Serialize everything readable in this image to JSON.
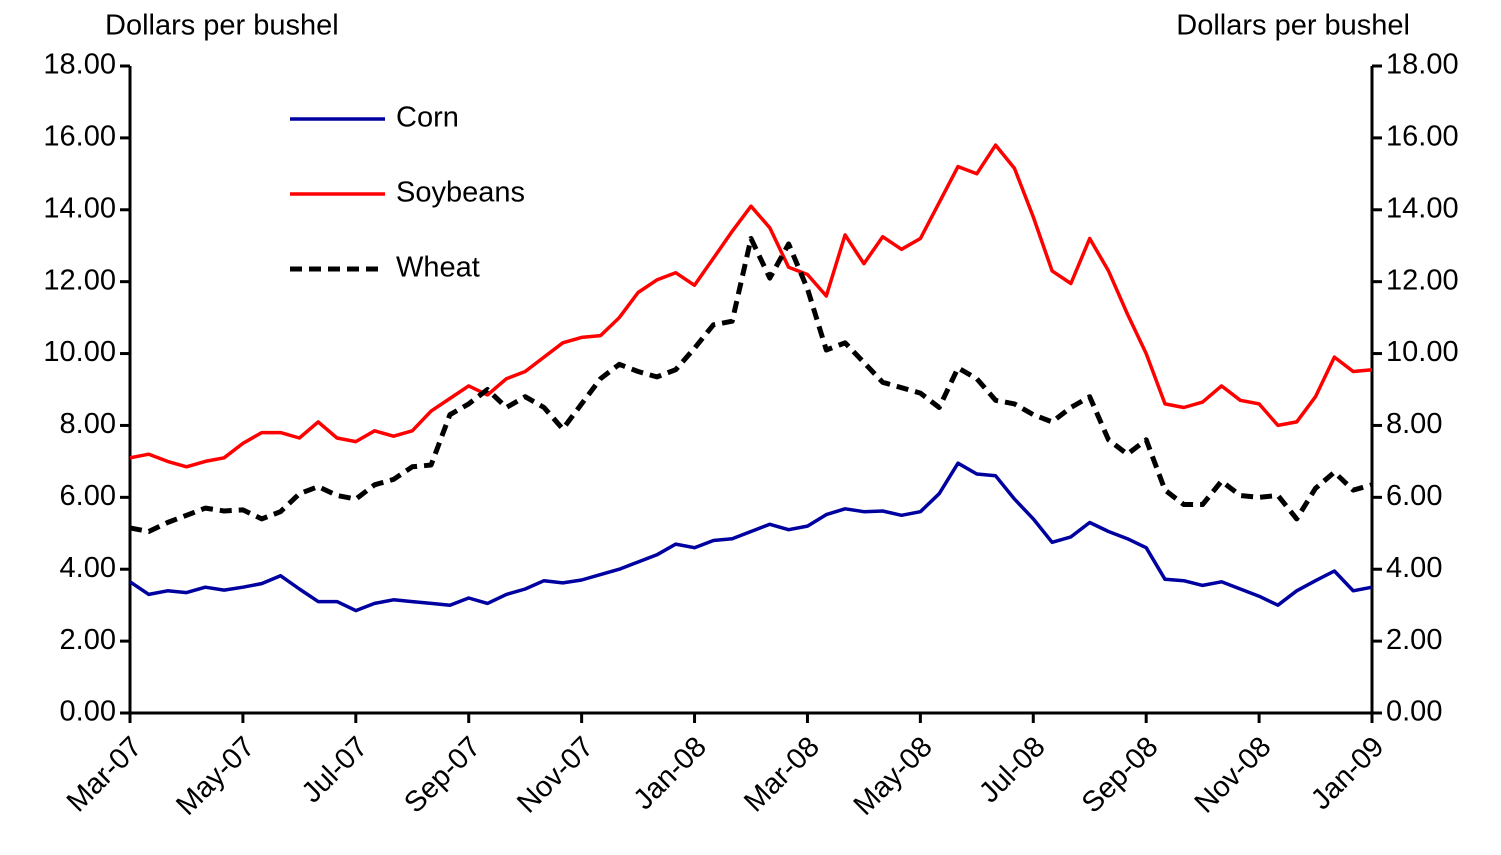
{
  "chart_data": {
    "type": "line",
    "ylabel": "Dollars per bushel",
    "y2label": "Dollars per bushel",
    "categories": [
      "Mar-07",
      null,
      null,
      null,
      null,
      null,
      "May-07",
      null,
      null,
      null,
      null,
      null,
      "Jul-07",
      null,
      null,
      null,
      null,
      null,
      "Sep-07",
      null,
      null,
      null,
      null,
      null,
      "Nov-07",
      null,
      null,
      null,
      null,
      null,
      "Jan-08",
      null,
      null,
      null,
      null,
      null,
      "Mar-08",
      null,
      null,
      null,
      null,
      null,
      "May-08",
      null,
      null,
      null,
      null,
      null,
      "Jul-08",
      null,
      null,
      null,
      null,
      null,
      "Sep-08",
      null,
      null,
      null,
      null,
      null,
      "Nov-08",
      null,
      null,
      null,
      null,
      null,
      "Jan-09"
    ],
    "series": [
      {
        "name": "Corn",
        "color": "#0000a0",
        "dash": "solid",
        "values": [
          3.65,
          3.3,
          3.4,
          3.35,
          3.5,
          3.42,
          3.5,
          3.6,
          3.82,
          3.45,
          3.1,
          3.1,
          2.85,
          3.05,
          3.15,
          3.1,
          3.05,
          3.0,
          3.2,
          3.05,
          3.3,
          3.45,
          3.68,
          3.62,
          3.7,
          3.85,
          4.0,
          4.2,
          4.4,
          4.7,
          4.6,
          4.8,
          4.85,
          5.05,
          5.25,
          5.1,
          5.2,
          5.52,
          5.68,
          5.6,
          5.62,
          5.5,
          5.6,
          6.1,
          6.95,
          6.65,
          6.6,
          5.95,
          5.4,
          4.75,
          4.9,
          5.3,
          5.05,
          4.85,
          4.6,
          3.72,
          3.68,
          3.55,
          3.65,
          3.45,
          3.25,
          3.0,
          3.4,
          3.68,
          3.95,
          3.4,
          3.5
        ]
      },
      {
        "name": "Soybeans",
        "color": "#ff0000",
        "dash": "solid",
        "values": [
          7.1,
          7.2,
          7.0,
          6.85,
          7.0,
          7.1,
          7.5,
          7.8,
          7.8,
          7.65,
          8.1,
          7.65,
          7.55,
          7.85,
          7.7,
          7.85,
          8.4,
          8.75,
          9.1,
          8.85,
          9.3,
          9.5,
          9.9,
          10.3,
          10.45,
          10.5,
          11.0,
          11.7,
          12.05,
          12.25,
          11.9,
          12.65,
          13.4,
          14.1,
          13.5,
          12.4,
          12.2,
          11.6,
          13.3,
          12.5,
          13.25,
          12.9,
          13.2,
          14.2,
          15.2,
          15.0,
          15.8,
          15.15,
          13.8,
          12.3,
          11.95,
          13.2,
          12.3,
          11.1,
          10.0,
          8.6,
          8.5,
          8.65,
          9.1,
          8.7,
          8.6,
          8.0,
          8.1,
          8.8,
          9.9,
          9.5,
          9.55
        ]
      },
      {
        "name": "Wheat",
        "color": "#000000",
        "dash": "dashed",
        "values": [
          5.15,
          5.05,
          5.3,
          5.5,
          5.7,
          5.62,
          5.65,
          5.4,
          5.6,
          6.1,
          6.3,
          6.05,
          5.95,
          6.35,
          6.5,
          6.85,
          6.9,
          8.3,
          8.6,
          9.0,
          8.5,
          8.8,
          8.5,
          7.9,
          8.6,
          9.3,
          9.7,
          9.5,
          9.35,
          9.55,
          10.15,
          10.8,
          10.9,
          13.2,
          12.1,
          13.05,
          11.8,
          10.1,
          10.3,
          9.75,
          9.2,
          9.05,
          8.9,
          8.5,
          9.6,
          9.3,
          8.7,
          8.6,
          8.3,
          8.1,
          8.5,
          8.8,
          7.6,
          7.2,
          7.6,
          6.2,
          5.8,
          5.8,
          6.45,
          6.05,
          6.0,
          6.05,
          5.4,
          6.25,
          6.7,
          6.2,
          6.35
        ]
      }
    ],
    "ylim": [
      0,
      18
    ],
    "yticks": [
      {
        "value": 0,
        "label": "0.00"
      },
      {
        "value": 2,
        "label": "2.00"
      },
      {
        "value": 4,
        "label": "4.00"
      },
      {
        "value": 6,
        "label": "6.00"
      },
      {
        "value": 8,
        "label": "8.00"
      },
      {
        "value": 10,
        "label": "10.00"
      },
      {
        "value": 12,
        "label": "12.00"
      },
      {
        "value": 14,
        "label": "14.00"
      },
      {
        "value": 16,
        "label": "16.00"
      },
      {
        "value": 18,
        "label": "18.00"
      }
    ],
    "y2lim": [
      0,
      18
    ],
    "y2ticks": [
      {
        "value": 0,
        "label": "0.00"
      },
      {
        "value": 2,
        "label": "2.00"
      },
      {
        "value": 4,
        "label": "4.00"
      },
      {
        "value": 6,
        "label": "6.00"
      },
      {
        "value": 8,
        "label": "8.00"
      },
      {
        "value": 10,
        "label": "10.00"
      },
      {
        "value": 12,
        "label": "12.00"
      },
      {
        "value": 14,
        "label": "14.00"
      },
      {
        "value": 16,
        "label": "16.00"
      },
      {
        "value": 18,
        "label": "18.00"
      }
    ],
    "grid": false,
    "legend": "top-left"
  }
}
